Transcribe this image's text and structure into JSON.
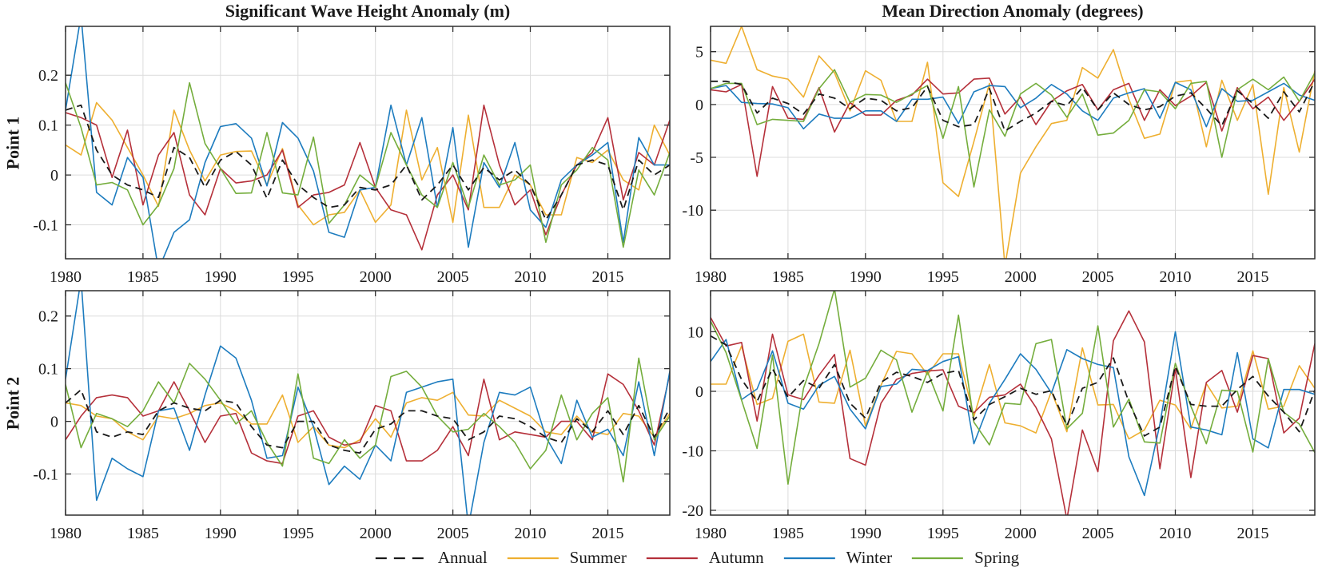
{
  "figure": {
    "col_titles": [
      "Significant Wave Height Anomaly (m)",
      "Mean Direction Anomaly (degrees)"
    ],
    "row_labels": [
      "Point 1",
      "Point 2"
    ],
    "series_draw_order": [
      "summer",
      "autumn",
      "winter",
      "spring",
      "annual"
    ],
    "grid_color": "#dcdcdc",
    "axis_color": "#2f2f2f"
  },
  "legend": {
    "items": [
      {
        "key": "annual",
        "label": "Annual",
        "color": "#1a1a1a",
        "dashed": true
      },
      {
        "key": "summer",
        "label": "Summer",
        "color": "#eeaf30",
        "dashed": false
      },
      {
        "key": "autumn",
        "label": "Autumn",
        "color": "#b5303a",
        "dashed": false
      },
      {
        "key": "winter",
        "label": "Winter",
        "color": "#1d7cbf",
        "dashed": false
      },
      {
        "key": "spring",
        "label": "Spring",
        "color": "#74ad3c",
        "dashed": false
      }
    ]
  },
  "chart_data": [
    {
      "type": "line",
      "name": "chart-point1-wave-height-anomaly",
      "title": "Significant Wave Height Anomaly (m)",
      "ylabel": "Point 1",
      "units": "m",
      "row": 0,
      "col": 0,
      "x_start": 1980,
      "xlim": [
        1980,
        2019
      ],
      "ylim": [
        -0.168,
        0.298
      ],
      "x_ticks": [
        1980,
        1985,
        1990,
        1995,
        2000,
        2005,
        2010,
        2015
      ],
      "x_tick_labels": [
        "1980",
        "1985",
        "1990",
        "1995",
        "2000",
        "2005",
        "2010",
        "2015"
      ],
      "y_ticks": [
        0.2,
        0.1,
        0,
        -0.1
      ],
      "y_tick_labels": [
        "0.2",
        "0.1",
        "0",
        "-0.1"
      ],
      "grid": true,
      "series": {
        "annual": [
          0.13,
          0.14,
          0.05,
          0,
          -0.02,
          -0.03,
          -0.045,
          0.055,
          0.035,
          -0.025,
          0.03,
          0.047,
          0.02,
          -0.047,
          0.03,
          -0.02,
          -0.045,
          -0.065,
          -0.06,
          -0.025,
          -0.03,
          -0.02,
          0.02,
          -0.05,
          -0.02,
          0.02,
          -0.03,
          0.015,
          -0.01,
          0.01,
          -0.02,
          -0.09,
          -0.04,
          0.02,
          0.03,
          0.02,
          -0.07,
          0.03,
          0,
          0.02
        ],
        "summer": [
          0.06,
          0.04,
          0.145,
          0.11,
          0.055,
          0,
          -0.063,
          0.13,
          0.05,
          -0.012,
          0.04,
          0.047,
          0.048,
          -0.02,
          0.053,
          -0.06,
          -0.1,
          -0.08,
          -0.075,
          -0.03,
          -0.095,
          -0.06,
          0.13,
          -0.01,
          0.055,
          -0.095,
          0.12,
          -0.065,
          -0.065,
          0,
          -0.02,
          -0.08,
          -0.08,
          0.035,
          0.025,
          0.05,
          -0.01,
          -0.03,
          0.1,
          0.04
        ],
        "autumn": [
          0.125,
          0.115,
          0.1,
          -0.005,
          0.09,
          -0.06,
          0.04,
          0.085,
          -0.04,
          -0.08,
          0.013,
          -0.016,
          -0.012,
          0,
          0.05,
          -0.065,
          -0.04,
          -0.035,
          -0.02,
          0.065,
          -0.025,
          -0.07,
          -0.08,
          -0.15,
          -0.04,
          0,
          -0.07,
          0.14,
          0.02,
          -0.06,
          -0.03,
          -0.12,
          -0.04,
          0.02,
          0.045,
          0.115,
          -0.05,
          0.045,
          0.02,
          0.11
        ],
        "winter": [
          0.13,
          0.32,
          -0.035,
          -0.06,
          0.035,
          -0.005,
          -0.19,
          -0.115,
          -0.09,
          0.025,
          0.097,
          0.103,
          0.074,
          -0.022,
          0.105,
          0.074,
          0.008,
          -0.115,
          -0.125,
          -0.03,
          -0.025,
          0.14,
          0.02,
          0.115,
          -0.065,
          0.095,
          -0.145,
          0.025,
          -0.025,
          0.065,
          -0.07,
          -0.105,
          -0.01,
          0.02,
          0.04,
          0.065,
          -0.135,
          0.075,
          0.02,
          0.02
        ],
        "spring": [
          0.185,
          0.095,
          -0.02,
          -0.015,
          -0.03,
          -0.1,
          -0.06,
          0.013,
          0.185,
          0.063,
          0.013,
          -0.037,
          -0.036,
          0.085,
          -0.036,
          -0.04,
          0.076,
          -0.097,
          -0.06,
          0,
          -0.025,
          0.085,
          0.02,
          -0.04,
          -0.065,
          0.025,
          -0.065,
          0.04,
          -0.02,
          -0.01,
          0.02,
          -0.135,
          -0.02,
          0.01,
          0.055,
          0.03,
          -0.145,
          0.01,
          -0.04,
          0.045
        ]
      }
    },
    {
      "type": "line",
      "name": "chart-point1-mean-direction-anomaly",
      "title": "Mean Direction Anomaly (degrees)",
      "ylabel": "Point 1",
      "units": "degrees",
      "row": 0,
      "col": 1,
      "x_start": 1980,
      "xlim": [
        1980,
        2019
      ],
      "ylim": [
        -14.6,
        7.4
      ],
      "x_ticks": [
        1980,
        1985,
        1990,
        1995,
        2000,
        2005,
        2010,
        2015
      ],
      "x_tick_labels": [
        "1980",
        "1985",
        "1990",
        "1995",
        "2000",
        "2005",
        "2010",
        "2015"
      ],
      "y_ticks": [
        5,
        0,
        -5,
        -10
      ],
      "y_tick_labels": [
        "5",
        "0",
        "-5",
        "-10"
      ],
      "grid": true,
      "series": {
        "annual": [
          2.2,
          2.2,
          1.9,
          -0.8,
          0.6,
          0.1,
          -0.9,
          1,
          0.6,
          -0.4,
          0.6,
          0.4,
          -0.6,
          -0.3,
          1.7,
          -1.5,
          -2.1,
          -1.9,
          1.5,
          -2.5,
          -1.6,
          -0.8,
          0.3,
          -0.1,
          1.6,
          -0.5,
          1.1,
          0,
          -0.5,
          -0.2,
          0.8,
          1.1,
          -0.4,
          -2,
          1.3,
          0.1,
          -1.3,
          1.2,
          -0.7,
          2.2
        ],
        "summer": [
          4.2,
          3.9,
          7.4,
          3.3,
          2.7,
          2.4,
          0.7,
          4.6,
          3,
          -0.6,
          3.2,
          2.3,
          -1.6,
          -1.6,
          4,
          -7.4,
          -8.7,
          -3.5,
          2,
          -15.3,
          -6.5,
          -4,
          -1.8,
          -1.5,
          3.5,
          2.5,
          5.2,
          0.5,
          -3.2,
          -2.8,
          2.1,
          2.3,
          -4,
          2.3,
          -1.5,
          1.9,
          -8.5,
          1.6,
          -4.5,
          3.2
        ],
        "autumn": [
          1.4,
          1.2,
          1.9,
          -6.8,
          1.7,
          -1.3,
          -1.4,
          1.6,
          -2.6,
          0.2,
          -1,
          -1,
          0.4,
          0.9,
          2.4,
          1,
          1.1,
          2.4,
          2.5,
          -0.9,
          0.7,
          -1.9,
          0.3,
          1.3,
          1.9,
          -0.5,
          1.4,
          2,
          -1.5,
          1.4,
          -0.1,
          0.8,
          2.1,
          -2.5,
          1.6,
          -0.4,
          0.7,
          -1.5,
          0.3,
          2.4
        ],
        "winter": [
          1.5,
          1.8,
          0.2,
          0.1,
          0.05,
          -0.3,
          -2.3,
          -0.9,
          -1.3,
          -1.3,
          -0.6,
          -0.6,
          -1.6,
          0.5,
          0.5,
          0.7,
          -1.8,
          1.2,
          1.8,
          1.7,
          -0.3,
          0.6,
          1.9,
          1,
          -0.6,
          -1.5,
          0.6,
          1.1,
          1.5,
          -1.3,
          2.1,
          1.4,
          -2.1,
          1.5,
          0.3,
          0.4,
          1.2,
          2,
          0.9,
          0.4
        ],
        "spring": [
          1.5,
          2,
          2,
          -1.9,
          -1.4,
          -1.5,
          -1.6,
          1.5,
          3.3,
          0.2,
          0.95,
          0.9,
          0.2,
          1,
          1.8,
          -3.2,
          1.7,
          -7.8,
          -0.5,
          -3,
          1,
          2,
          0.9,
          -1.2,
          1,
          -2.9,
          -2.7,
          -1.5,
          1.4,
          1.2,
          -0.4,
          2,
          2.2,
          -5,
          1.4,
          2.4,
          1.4,
          2.6,
          0.3,
          3
        ]
      }
    },
    {
      "type": "line",
      "name": "chart-point2-wave-height-anomaly",
      "title": "Significant Wave Height Anomaly (m)",
      "ylabel": "Point 2",
      "units": "m",
      "row": 1,
      "col": 0,
      "x_start": 1980,
      "xlim": [
        1980,
        2019
      ],
      "ylim": [
        -0.178,
        0.248
      ],
      "x_ticks": [
        1980,
        1985,
        1990,
        1995,
        2000,
        2005,
        2010,
        2015
      ],
      "x_tick_labels": [
        "1980",
        "1985",
        "1990",
        "1995",
        "2000",
        "2005",
        "2010",
        "2015"
      ],
      "y_ticks": [
        0.2,
        0.1,
        0,
        -0.1
      ],
      "y_tick_labels": [
        "0.2",
        "0.1",
        "0",
        "-0.1"
      ],
      "grid": true,
      "series": {
        "annual": [
          0.035,
          0.06,
          -0.02,
          -0.03,
          -0.02,
          -0.025,
          0.02,
          0.035,
          0.025,
          0.02,
          0.04,
          0.035,
          -0.01,
          -0.045,
          -0.05,
          0,
          0,
          -0.045,
          -0.055,
          -0.06,
          -0.015,
          -0.005,
          0.02,
          0.02,
          0.01,
          0.005,
          -0.035,
          -0.02,
          0.01,
          0.005,
          -0.01,
          -0.03,
          -0.04,
          0.005,
          -0.02,
          0.02,
          -0.025,
          0.03,
          -0.03,
          0.025
        ],
        "summer": [
          0.035,
          0.03,
          0.01,
          0.005,
          -0.02,
          -0.035,
          0.01,
          0.005,
          0.015,
          0.03,
          0.035,
          0.02,
          -0.005,
          -0.005,
          0.05,
          -0.04,
          -0.01,
          -0.045,
          -0.05,
          -0.035,
          0.005,
          -0.03,
          0.035,
          0.045,
          0.04,
          0.055,
          0.012,
          0.01,
          0.04,
          0.025,
          0.01,
          -0.02,
          -0.025,
          0.01,
          -0.02,
          -0.025,
          0.015,
          0.01,
          -0.03,
          0.015
        ],
        "autumn": [
          -0.035,
          0.01,
          0.045,
          0.05,
          0.045,
          0.01,
          0.02,
          0.075,
          0.02,
          -0.04,
          0.01,
          0.015,
          -0.06,
          -0.075,
          -0.08,
          0.01,
          0.02,
          -0.03,
          -0.045,
          -0.04,
          0.03,
          0.02,
          -0.075,
          -0.075,
          -0.055,
          -0.01,
          -0.065,
          0.08,
          -0.035,
          -0.02,
          -0.025,
          -0.03,
          0,
          0,
          -0.035,
          0.09,
          0.07,
          0.02,
          -0.045,
          0.09
        ],
        "winter": [
          0.08,
          0.27,
          -0.15,
          -0.07,
          -0.09,
          -0.105,
          0.02,
          0.025,
          -0.055,
          0.05,
          0.143,
          0.12,
          0.04,
          -0.07,
          -0.065,
          0.065,
          -0.01,
          -0.12,
          -0.085,
          -0.11,
          -0.045,
          -0.075,
          0.055,
          0.065,
          0.075,
          0.08,
          -0.2,
          -0.04,
          0.055,
          0.05,
          0.065,
          -0.03,
          -0.08,
          0.04,
          -0.03,
          -0.015,
          -0.065,
          0.075,
          -0.065,
          0.095
        ],
        "spring": [
          0.07,
          -0.05,
          0.015,
          0.005,
          -0.01,
          0.02,
          0.075,
          0.035,
          0.11,
          0.08,
          0.04,
          -0.005,
          0.02,
          -0.04,
          -0.085,
          0.09,
          -0.07,
          -0.08,
          -0.035,
          -0.07,
          -0.045,
          0.085,
          0.095,
          0.065,
          0.01,
          -0.02,
          -0.015,
          0.015,
          -0.01,
          -0.04,
          -0.09,
          -0.055,
          0.05,
          -0.035,
          0.015,
          0.045,
          -0.115,
          0.12,
          -0.035,
          0.01
        ]
      }
    },
    {
      "type": "line",
      "name": "chart-point2-mean-direction-anomaly",
      "title": "Mean Direction Anomaly (degrees)",
      "ylabel": "Point 2",
      "units": "degrees",
      "row": 1,
      "col": 1,
      "x_start": 1980,
      "xlim": [
        1980,
        2019
      ],
      "ylim": [
        -20.8,
        16.9
      ],
      "x_ticks": [
        1980,
        1985,
        1990,
        1995,
        2000,
        2005,
        2010,
        2015
      ],
      "x_tick_labels": [
        "1980",
        "1985",
        "1990",
        "1995",
        "2000",
        "2005",
        "2010",
        "2015"
      ],
      "y_ticks": [
        10,
        0,
        -10,
        -20
      ],
      "y_tick_labels": [
        "10",
        "0",
        "-10",
        "-20"
      ],
      "grid": true,
      "series": {
        "annual": [
          9.3,
          7.8,
          2,
          -1.7,
          3.8,
          -1,
          1.8,
          0.5,
          4.5,
          -2,
          -4.5,
          1.5,
          3.2,
          2.5,
          1.5,
          3,
          3.5,
          -4.8,
          -2.2,
          -0.9,
          0.5,
          -0.5,
          0.1,
          -5.8,
          0.5,
          1.5,
          5.6,
          -1.8,
          -7.5,
          -6,
          4.2,
          -2.2,
          -2.5,
          -2.5,
          0.3,
          2.5,
          -0.8,
          -3.5,
          -6.8,
          0.2
        ],
        "summer": [
          1.2,
          1.2,
          7.6,
          -2.2,
          -1.2,
          8.4,
          9.6,
          -1.8,
          -2,
          6.9,
          -5.8,
          1,
          6.7,
          6.3,
          2.8,
          6.3,
          6.3,
          -4.2,
          4.5,
          -5.3,
          -5.8,
          -7,
          0,
          -6.8,
          7.3,
          -2.3,
          -2.2,
          -8,
          -6.5,
          -1.5,
          -2.3,
          -6.3,
          1.3,
          -2.8,
          -2.5,
          6.8,
          -3,
          -2.5,
          4.3,
          0.5
        ],
        "autumn": [
          12.4,
          7.6,
          8.2,
          -5,
          9.6,
          -0.6,
          -1.4,
          2.7,
          6.2,
          -11.3,
          -12.4,
          -2,
          2,
          3,
          3.4,
          3.6,
          -2.5,
          -3.6,
          -1,
          -0.6,
          1.2,
          -2.7,
          -8,
          -21.5,
          -6.5,
          -13.5,
          8.5,
          13.5,
          8.3,
          -13,
          3.8,
          -14.5,
          1.5,
          3.5,
          -3.5,
          6,
          5.5,
          -7,
          -4.5,
          8
        ],
        "winter": [
          5,
          8.7,
          -1.4,
          0.4,
          6.8,
          -2,
          -3,
          1,
          2.5,
          -3,
          -6.3,
          0.8,
          1.2,
          3.7,
          3.5,
          5,
          5.8,
          -8.8,
          -2,
          2,
          6.3,
          3.7,
          -0.3,
          7,
          5.5,
          4.5,
          4,
          -11,
          -17.5,
          -5.5,
          10,
          -6,
          -6.5,
          -7.3,
          6.5,
          -8,
          -9.5,
          0.3,
          0.3,
          -0.5
        ],
        "spring": [
          11.8,
          6.5,
          -1.5,
          -9.6,
          6.1,
          -15.6,
          0.5,
          8,
          17.2,
          0.7,
          2.2,
          6.9,
          5.3,
          -3.5,
          3.3,
          -3.3,
          12.8,
          -5.2,
          -9,
          -2,
          -2.2,
          8,
          8.7,
          -6.3,
          -3.7,
          11,
          -6,
          -1.3,
          -8.5,
          -8.7,
          4.7,
          -2.5,
          -8.8,
          0.2,
          0,
          -10.2,
          5.5,
          -3.5,
          -5.5,
          -10.3
        ]
      }
    }
  ]
}
